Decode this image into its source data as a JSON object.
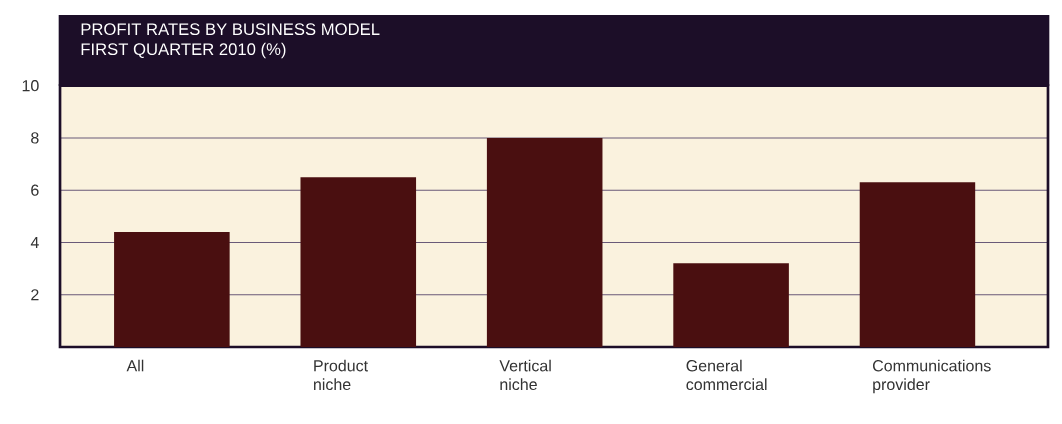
{
  "chart_data": {
    "type": "bar",
    "title": "PROFIT RATES BY BUSINESS MODEL",
    "subtitle": "FIRST QUARTER 2010 (%)",
    "categories": [
      "All",
      "Product niche",
      "Vertical niche",
      "General commercial",
      "Communications provider"
    ],
    "values": [
      4.4,
      6.5,
      8.0,
      3.2,
      6.3
    ],
    "color": "#4a0f10",
    "ylim": [
      0,
      10
    ],
    "yticks": [
      2,
      4,
      6,
      8,
      10
    ],
    "grid": "y"
  }
}
